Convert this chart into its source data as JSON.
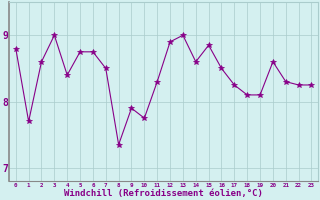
{
  "x": [
    0,
    1,
    2,
    3,
    4,
    5,
    6,
    7,
    8,
    9,
    10,
    11,
    12,
    13,
    14,
    15,
    16,
    17,
    18,
    19,
    20,
    21,
    22,
    23
  ],
  "y": [
    8.8,
    7.7,
    8.6,
    9.0,
    8.4,
    8.75,
    8.75,
    8.5,
    7.35,
    7.9,
    7.75,
    8.3,
    8.9,
    9.0,
    8.6,
    8.85,
    8.5,
    8.25,
    8.1,
    8.1,
    8.6,
    8.3,
    8.25,
    8.25
  ],
  "line_color": "#880088",
  "marker": "*",
  "marker_size": 4,
  "bg_color": "#d4f0f0",
  "grid_color": "#aacccc",
  "spine_color": "#888888",
  "xlabel": "Windchill (Refroidissement éolien,°C)",
  "xlabel_color": "#880088",
  "tick_color": "#880088",
  "ylim": [
    6.8,
    9.5
  ],
  "yticks": [
    7,
    8,
    9
  ],
  "ytick_labels": [
    "7",
    "8",
    "9"
  ],
  "xlim": [
    -0.5,
    23.5
  ],
  "xtick_fontsize": 4.2,
  "ytick_fontsize": 7.0,
  "xlabel_fontsize": 6.5
}
